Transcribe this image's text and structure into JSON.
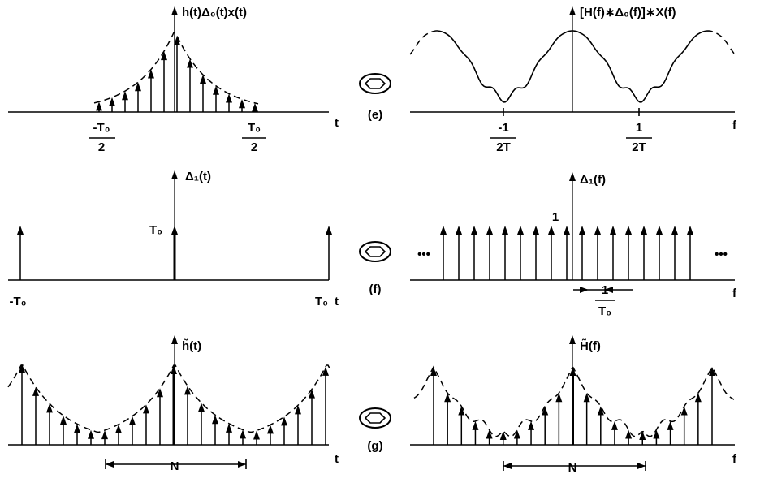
{
  "rows": [
    {
      "label": "(e)",
      "left": {
        "title": "h(t)Δ₀(t)x(t)",
        "axis": "t",
        "ticks": [
          {
            "num": "-T₀",
            "den": "2"
          },
          {
            "num": "T₀",
            "den": "2"
          }
        ]
      },
      "right": {
        "title": "[H(f)∗Δ₀(f)]∗X(f)",
        "axis": "f",
        "ticks": [
          {
            "num": "-1",
            "den": "2T"
          },
          {
            "num": "1",
            "den": "2T"
          }
        ]
      }
    },
    {
      "label": "(f)",
      "left": {
        "title": "Δ₁(t)",
        "axis": "t",
        "height_label": "T₀",
        "ticks": [
          "-T₀",
          "T₀"
        ]
      },
      "right": {
        "title": "Δ₁(f)",
        "axis": "f",
        "height_label": "1",
        "ellipsis": [
          "•••",
          "•••"
        ],
        "spacing": {
          "num": "1",
          "den": "T₀"
        }
      }
    },
    {
      "label": "(g)",
      "left": {
        "title": "h̃(t)",
        "axis": "t",
        "period": "N"
      },
      "right": {
        "title": "H̃(f)",
        "axis": "f",
        "period": "N"
      }
    }
  ]
}
